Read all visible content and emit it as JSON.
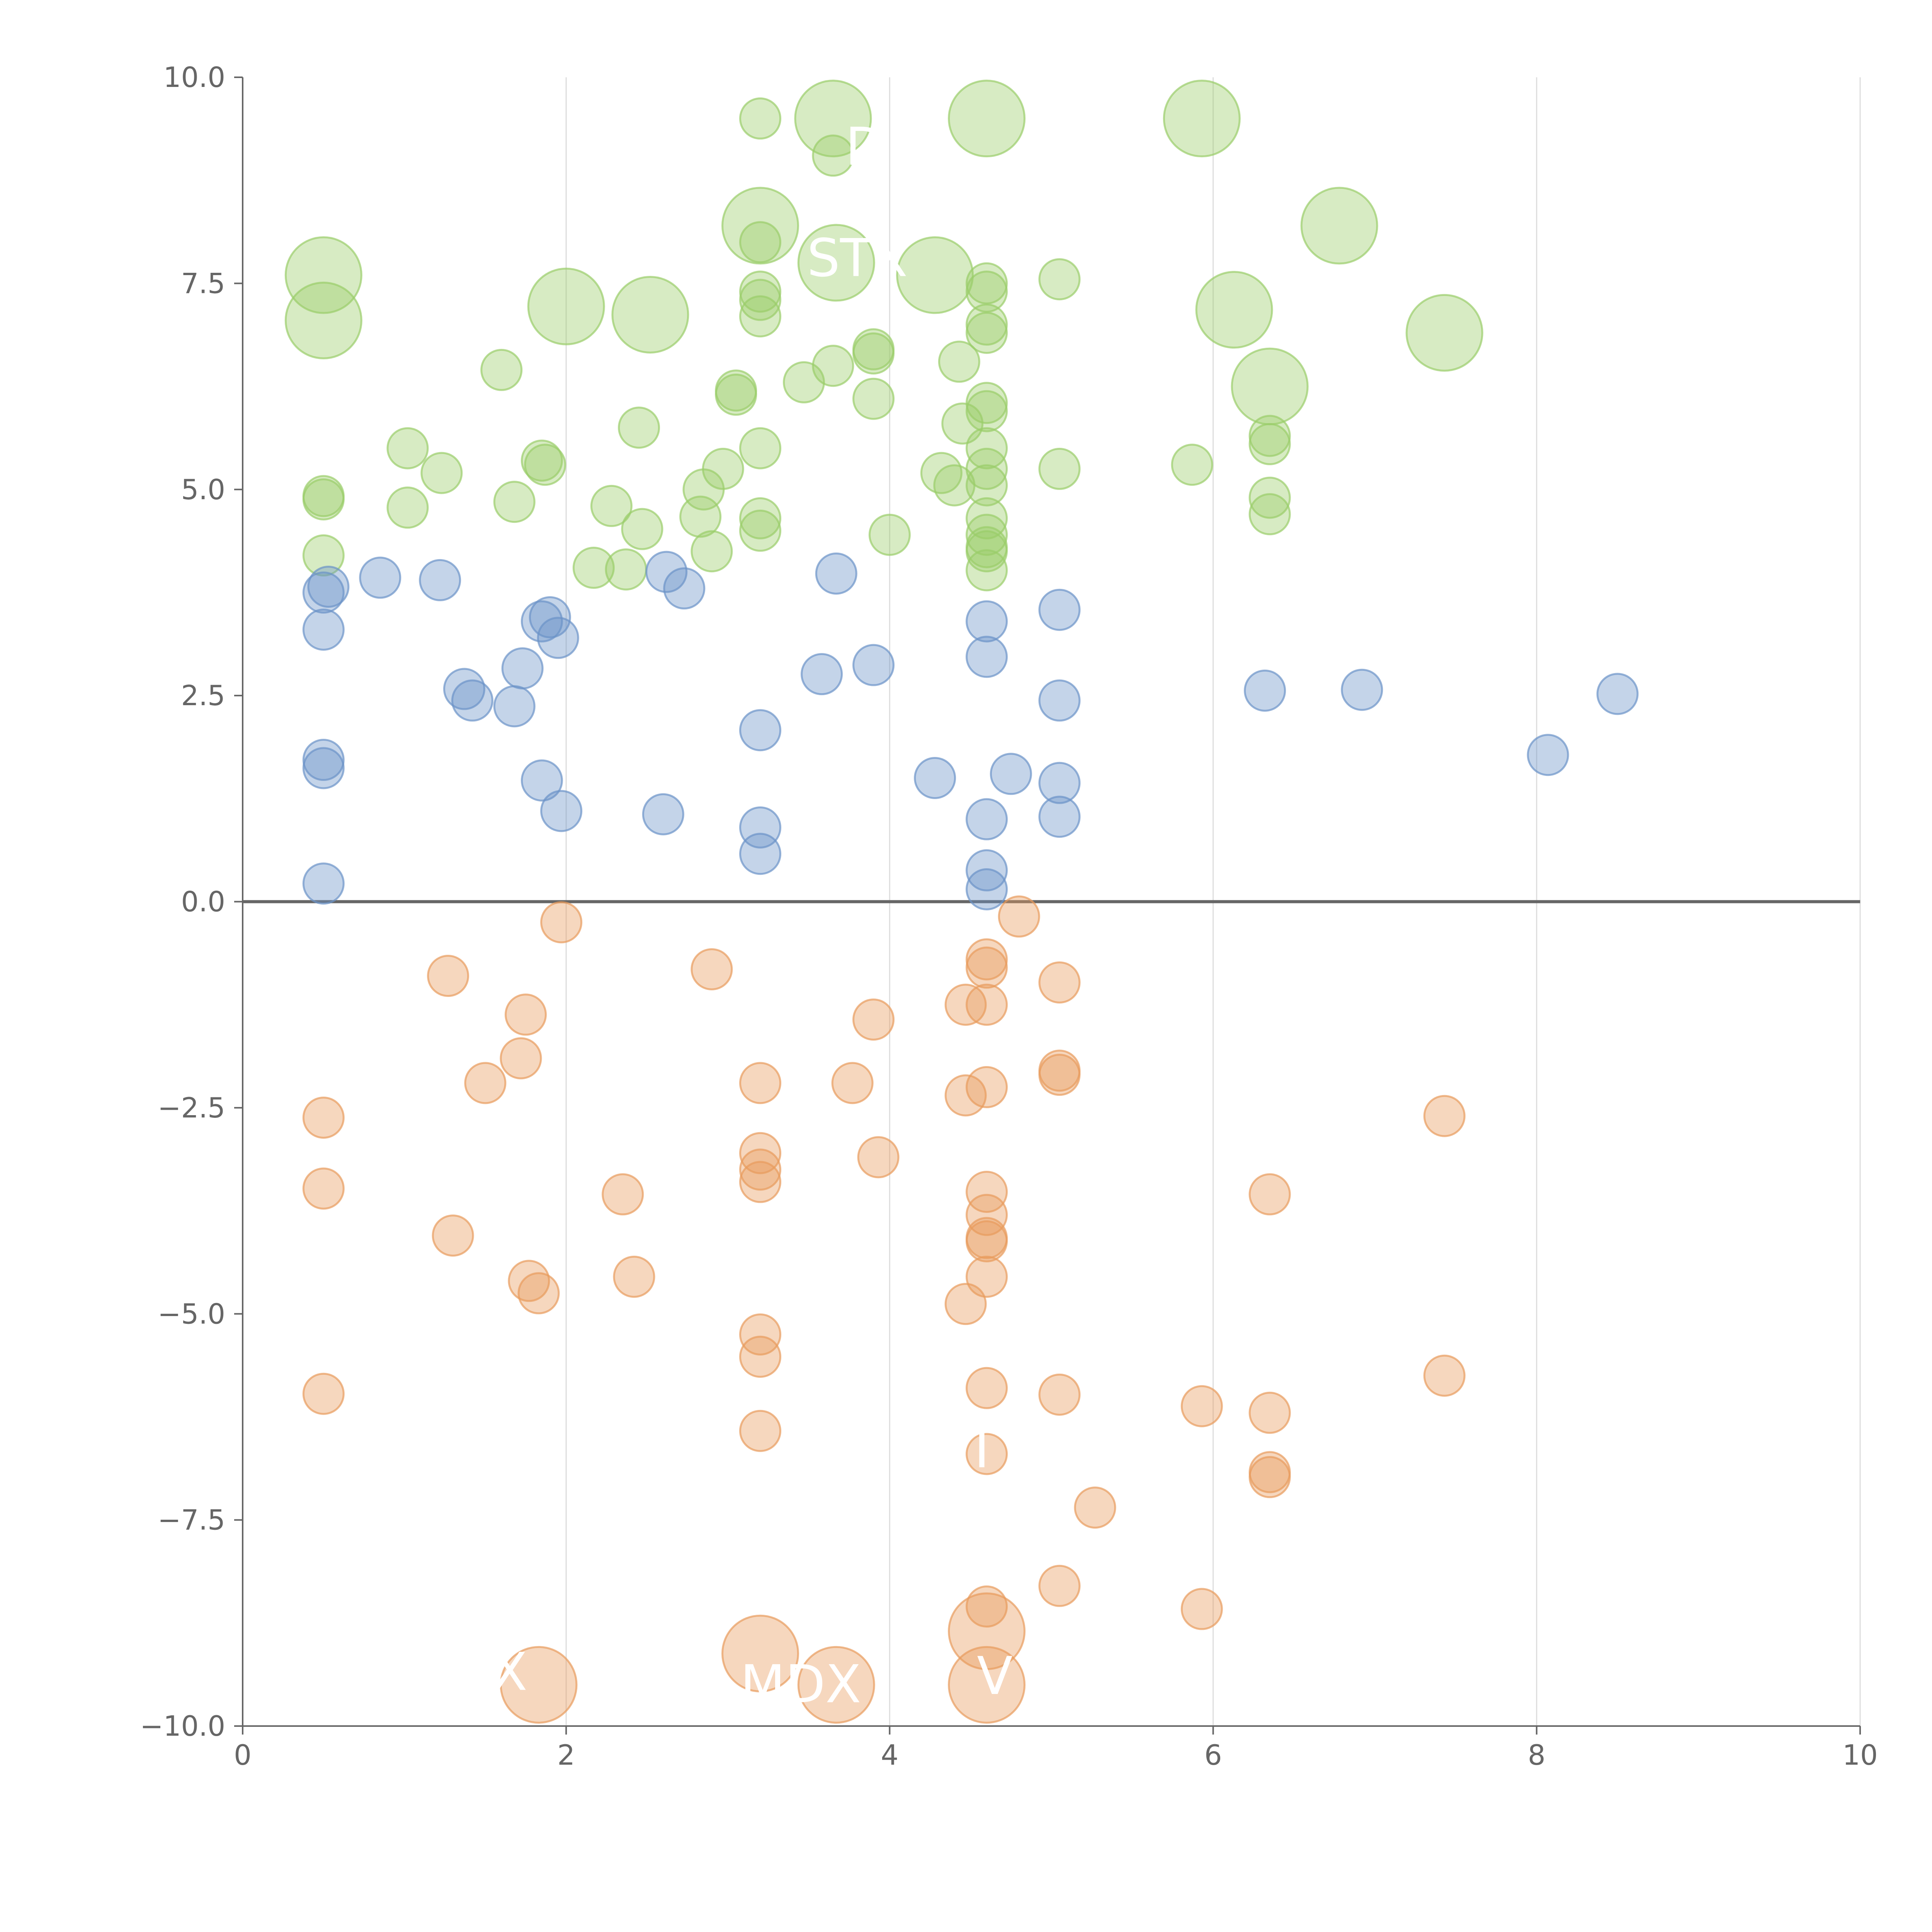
{
  "chart_data": {
    "type": "scatter",
    "title": "",
    "xlabel": "",
    "ylabel": "",
    "xlim": [
      0,
      10
    ],
    "ylim": [
      -10,
      10
    ],
    "x_ticks": [
      0,
      2,
      4,
      6,
      8,
      10
    ],
    "y_ticks": [
      -10,
      -7.5,
      -5,
      -2.5,
      0,
      2.5,
      5,
      7.5,
      10
    ],
    "x_tick_labels": [
      "0",
      "2",
      "4",
      "6",
      "8",
      "10"
    ],
    "y_tick_labels": [
      "−10.0",
      "−7.5",
      "−5.0",
      "−2.5",
      "0.0",
      "2.5",
      "5.0",
      "7.5",
      "10.0"
    ],
    "grid": "vertical",
    "zero_line": true,
    "colors": {
      "green": "#9ACD6A",
      "blue": "#6B93C8",
      "orange": "#E89B5C",
      "axis": "#666666",
      "grid": "#dddddd"
    },
    "series": [
      {
        "name": "green",
        "color": "#9ACD6A",
        "points": [
          [
            3.2,
            9.5
          ],
          [
            3.2,
            8.0
          ],
          [
            3.2,
            7.4
          ],
          [
            3.2,
            7.3
          ],
          [
            3.2,
            7.1
          ],
          [
            3.9,
            6.7
          ],
          [
            3.9,
            6.65
          ],
          [
            3.9,
            6.1
          ],
          [
            3.65,
            6.5
          ],
          [
            3.47,
            6.3
          ],
          [
            3.05,
            6.2
          ],
          [
            3.05,
            6.15
          ],
          [
            3.2,
            5.5
          ],
          [
            3.2,
            4.65
          ],
          [
            3.2,
            4.5
          ],
          [
            2.97,
            5.25
          ],
          [
            2.85,
            5.0
          ],
          [
            2.83,
            4.67
          ],
          [
            2.9,
            4.25
          ],
          [
            2.45,
            5.75
          ],
          [
            2.28,
            4.8
          ],
          [
            2.47,
            4.52
          ],
          [
            2.37,
            4.03
          ],
          [
            2.17,
            4.05
          ],
          [
            1.85,
            5.35
          ],
          [
            1.87,
            5.3
          ],
          [
            1.68,
            4.85
          ],
          [
            1.6,
            6.45
          ],
          [
            1.23,
            5.2
          ],
          [
            1.02,
            5.5
          ],
          [
            1.02,
            4.78
          ],
          [
            0.5,
            4.92
          ],
          [
            0.5,
            4.88
          ],
          [
            0.5,
            4.2
          ],
          [
            4.0,
            4.45
          ],
          [
            4.32,
            5.2
          ],
          [
            4.4,
            5.05
          ],
          [
            4.45,
            5.8
          ],
          [
            4.43,
            6.55
          ],
          [
            4.6,
            7.5
          ],
          [
            4.6,
            7.4
          ],
          [
            4.6,
            7.0
          ],
          [
            4.6,
            6.9
          ],
          [
            4.6,
            6.05
          ],
          [
            4.6,
            5.95
          ],
          [
            4.6,
            5.5
          ],
          [
            4.6,
            5.25
          ],
          [
            4.6,
            5.05
          ],
          [
            4.6,
            4.65
          ],
          [
            4.6,
            4.45
          ],
          [
            4.6,
            4.3
          ],
          [
            4.6,
            4.25
          ],
          [
            4.6,
            4.02
          ],
          [
            5.05,
            7.55
          ],
          [
            5.05,
            5.25
          ],
          [
            5.87,
            5.3
          ],
          [
            6.35,
            5.65
          ],
          [
            6.35,
            5.55
          ],
          [
            6.35,
            4.9
          ],
          [
            6.35,
            4.7
          ],
          [
            3.65,
            9.05
          ]
        ],
        "radius": 1
      },
      {
        "name": "green-large",
        "color": "#9ACD6A",
        "points": [
          [
            3.65,
            9.5
          ],
          [
            4.6,
            9.5
          ],
          [
            5.93,
            9.5
          ],
          [
            3.2,
            8.2
          ],
          [
            6.78,
            8.2
          ],
          [
            0.5,
            7.6
          ],
          [
            0.5,
            7.05
          ],
          [
            2.0,
            7.22
          ],
          [
            2.52,
            7.12
          ],
          [
            3.67,
            7.75
          ],
          [
            4.28,
            7.6
          ],
          [
            6.13,
            7.18
          ],
          [
            7.43,
            6.9
          ],
          [
            6.35,
            6.25
          ]
        ],
        "radius": 2
      },
      {
        "name": "blue",
        "color": "#6B93C8",
        "points": [
          [
            0.5,
            3.75
          ],
          [
            0.53,
            3.82
          ],
          [
            0.5,
            3.3
          ],
          [
            0.5,
            1.72
          ],
          [
            0.5,
            1.62
          ],
          [
            0.5,
            0.22
          ],
          [
            0.85,
            3.93
          ],
          [
            1.22,
            3.9
          ],
          [
            1.37,
            2.58
          ],
          [
            1.42,
            2.44
          ],
          [
            1.68,
            2.37
          ],
          [
            1.73,
            2.83
          ],
          [
            1.85,
            3.4
          ],
          [
            1.9,
            3.45
          ],
          [
            1.95,
            3.2
          ],
          [
            1.85,
            1.47
          ],
          [
            1.97,
            1.1
          ],
          [
            2.62,
            4.0
          ],
          [
            2.73,
            3.8
          ],
          [
            2.6,
            1.06
          ],
          [
            3.2,
            2.08
          ],
          [
            3.2,
            0.9
          ],
          [
            3.2,
            0.58
          ],
          [
            3.58,
            2.76
          ],
          [
            3.67,
            3.98
          ],
          [
            3.9,
            2.87
          ],
          [
            4.28,
            1.5
          ],
          [
            4.6,
            3.4
          ],
          [
            4.6,
            2.97
          ],
          [
            4.6,
            1.0
          ],
          [
            4.6,
            0.38
          ],
          [
            4.6,
            0.15
          ],
          [
            4.75,
            1.55
          ],
          [
            5.05,
            3.54
          ],
          [
            5.05,
            2.44
          ],
          [
            5.05,
            1.44
          ],
          [
            5.05,
            1.03
          ],
          [
            6.32,
            2.56
          ],
          [
            6.92,
            2.57
          ],
          [
            8.07,
            1.78
          ],
          [
            8.5,
            2.52
          ]
        ],
        "radius": 1
      },
      {
        "name": "orange",
        "color": "#E89B5C",
        "points": [
          [
            1.97,
            -0.25
          ],
          [
            1.27,
            -0.9
          ],
          [
            2.9,
            -0.82
          ],
          [
            4.8,
            -0.18
          ],
          [
            1.75,
            -1.37
          ],
          [
            1.72,
            -1.9
          ],
          [
            1.5,
            -2.2
          ],
          [
            0.5,
            -2.62
          ],
          [
            0.5,
            -3.48
          ],
          [
            1.3,
            -4.05
          ],
          [
            1.77,
            -4.6
          ],
          [
            1.83,
            -4.75
          ],
          [
            2.35,
            -3.55
          ],
          [
            2.42,
            -4.55
          ],
          [
            0.5,
            -5.97
          ],
          [
            3.2,
            -2.2
          ],
          [
            3.2,
            -3.05
          ],
          [
            3.2,
            -3.25
          ],
          [
            3.2,
            -3.4
          ],
          [
            3.2,
            -5.25
          ],
          [
            3.2,
            -5.52
          ],
          [
            3.2,
            -6.42
          ],
          [
            3.77,
            -2.2
          ],
          [
            3.9,
            -1.43
          ],
          [
            3.93,
            -3.1
          ],
          [
            4.47,
            -1.25
          ],
          [
            4.6,
            -0.7
          ],
          [
            4.6,
            -0.8
          ],
          [
            4.6,
            -1.25
          ],
          [
            4.6,
            -2.25
          ],
          [
            4.47,
            -2.35
          ],
          [
            4.6,
            -3.52
          ],
          [
            4.6,
            -3.8
          ],
          [
            4.6,
            -4.08
          ],
          [
            4.6,
            -4.12
          ],
          [
            4.6,
            -4.55
          ],
          [
            4.47,
            -4.88
          ],
          [
            4.6,
            -5.9
          ],
          [
            4.6,
            -6.7
          ],
          [
            4.6,
            -8.55
          ],
          [
            5.05,
            -0.98
          ],
          [
            5.05,
            -2.05
          ],
          [
            5.05,
            -2.1
          ],
          [
            5.05,
            -5.98
          ],
          [
            5.05,
            -8.3
          ],
          [
            5.27,
            -7.35
          ],
          [
            5.93,
            -6.12
          ],
          [
            5.93,
            -8.58
          ],
          [
            6.35,
            -3.55
          ],
          [
            6.35,
            -6.2
          ],
          [
            6.35,
            -6.92
          ],
          [
            6.35,
            -6.98
          ],
          [
            7.43,
            -2.6
          ],
          [
            7.43,
            -5.75
          ]
        ],
        "radius": 1
      },
      {
        "name": "orange-large",
        "color": "#E89B5C",
        "points": [
          [
            1.83,
            -9.5
          ],
          [
            3.2,
            -9.12
          ],
          [
            3.67,
            -9.5
          ],
          [
            4.6,
            -8.85
          ],
          [
            4.6,
            -9.5
          ]
        ],
        "radius": 2
      }
    ],
    "labels": [
      {
        "text": "D",
        "x": 3.85,
        "y": 9.15
      },
      {
        "text": "STX",
        "x": 3.8,
        "y": 7.8
      },
      {
        "text": "X",
        "x": 1.65,
        "y": -9.35
      },
      {
        "text": "MDX",
        "x": 3.45,
        "y": -9.5
      },
      {
        "text": "V",
        "x": 4.65,
        "y": -9.4
      },
      {
        "text": "I",
        "x": 4.57,
        "y": -6.65
      }
    ]
  }
}
